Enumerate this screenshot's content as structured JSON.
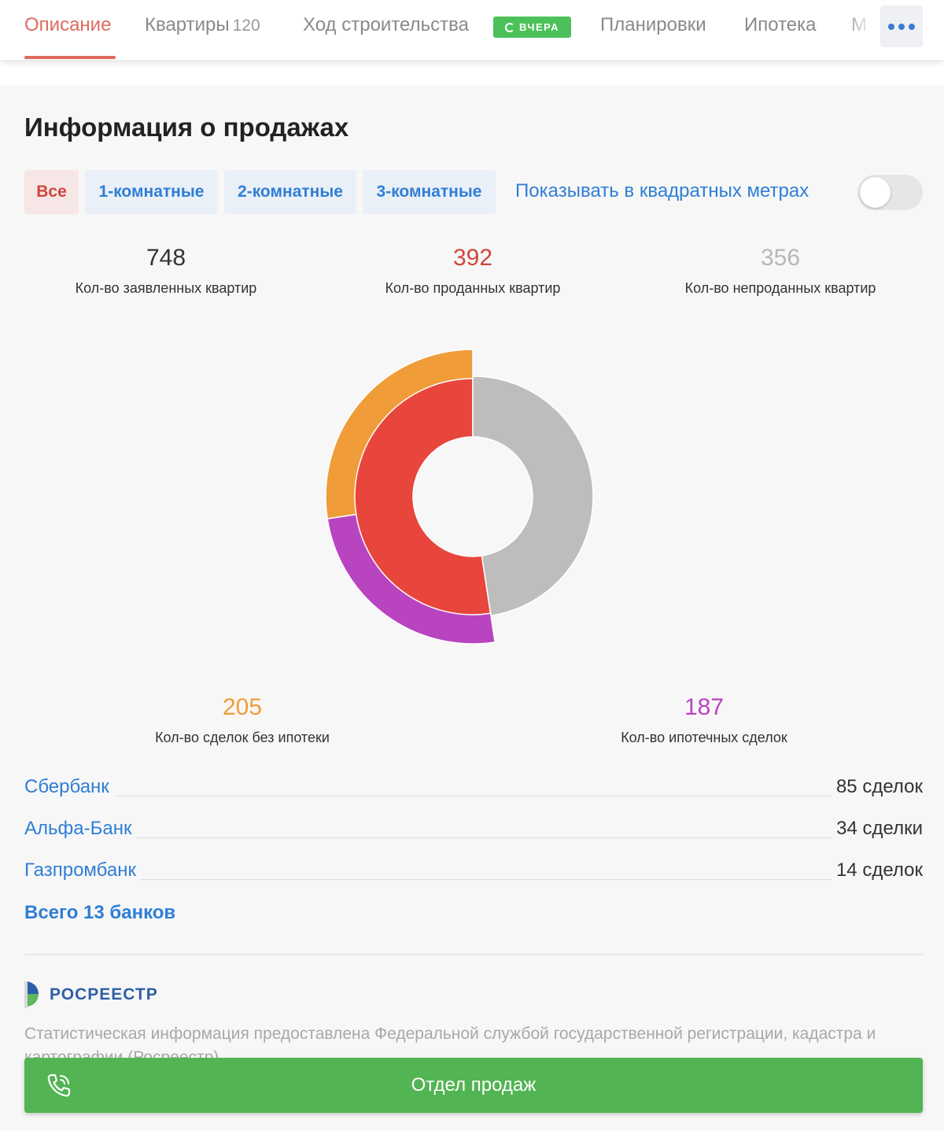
{
  "tabs": [
    {
      "label": "Описание",
      "active": true
    },
    {
      "label": "Квартиры",
      "count": "120"
    },
    {
      "label": "Ход строительства",
      "badge": "ВЧЕРА",
      "badge_icon": "refresh-icon"
    },
    {
      "label": "Планировки"
    },
    {
      "label": "Ипотека"
    },
    {
      "label": "М"
    }
  ],
  "more_icon": "more-dots-icon",
  "section": {
    "title": "Информация о продажах"
  },
  "filters": {
    "chips": [
      "Все",
      "1-комнатные",
      "2-комнатные",
      "3-комнатные"
    ],
    "active": "Все",
    "sqm_label": "Показывать в квадратных метрах",
    "sqm_enabled": false
  },
  "stats": {
    "declared": {
      "value": "748",
      "label": "Кол-во заявленных квартир"
    },
    "sold": {
      "value": "392",
      "label": "Кол-во проданных квартир"
    },
    "unsold": {
      "value": "356",
      "label": "Кол-во непроданных квартир"
    },
    "no_mortgage": {
      "value": "205",
      "label": "Кол-во сделок без ипотеки"
    },
    "mortgage": {
      "value": "187",
      "label": "Кол-во ипотечных сделок"
    }
  },
  "chart_data": {
    "type": "pie",
    "inner_ring": [
      {
        "name": "Проданные",
        "value": 392,
        "color": "#e8453c"
      },
      {
        "name": "Непроданные",
        "value": 356,
        "color": "#bdbdbd"
      }
    ],
    "outer_ring": [
      {
        "name": "Без ипотеки",
        "value": 205,
        "color": "#f09c38"
      },
      {
        "name": "Ипотека",
        "value": 187,
        "color": "#b944c0"
      }
    ]
  },
  "banks": {
    "items": [
      {
        "name": "Сбербанк",
        "count": "85 сделок"
      },
      {
        "name": "Альфа-Банк",
        "count": "34 сделки"
      },
      {
        "name": "Газпромбанк",
        "count": "14 сделок"
      }
    ],
    "total_label": "Всего 13 банков"
  },
  "source": {
    "logo_text": "РОСРЕЕСТР",
    "note": "Статистическая информация предоставлена Федеральной службой государственной регистрации, кадастра и картографии (Росреестр)"
  },
  "call_button": {
    "label": "Отдел продаж",
    "icon": "phone-icon"
  },
  "colors": {
    "accent": "#e06a5f",
    "link": "#2f7ed6",
    "sold": "#e8453c",
    "unsold": "#bdbdbd",
    "no_mortgage": "#f09c38",
    "mortgage": "#b944c0",
    "call": "#52b452"
  }
}
